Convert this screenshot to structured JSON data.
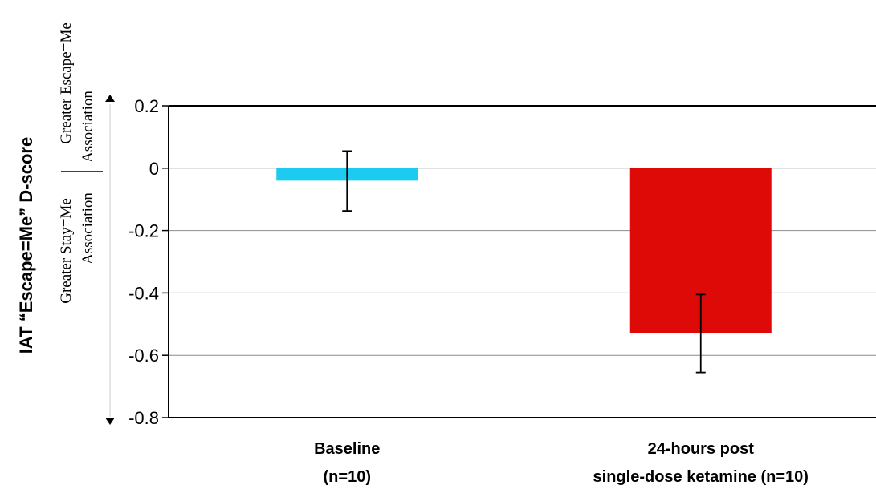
{
  "chart_data": {
    "type": "bar",
    "ylabel": "IAT “Escape=Me” D-score",
    "ylim": [
      -0.8,
      0.2
    ],
    "yticks": [
      "0.2",
      "0",
      "-0.2",
      "-0.4",
      "-0.6",
      "-0.8"
    ],
    "ytick_values": [
      0.2,
      0,
      -0.2,
      -0.4,
      -0.6,
      -0.8
    ],
    "grid": true,
    "categories": [
      {
        "line1": "Baseline",
        "line2": "(n=10)"
      },
      {
        "line1": "24-hours post",
        "line2": "single-dose ketamine (n=10)"
      }
    ],
    "values": [
      -0.04,
      -0.53
    ],
    "errors": [
      {
        "upper": 0.055,
        "lower": -0.137
      },
      {
        "upper": -0.405,
        "lower": -0.655
      }
    ],
    "colors": [
      "#1ecbf0",
      "#dd0a07"
    ],
    "annotations": {
      "upper": {
        "line1": "Greater Escape=Me",
        "line2": "Association"
      },
      "lower": {
        "line1": "Greater Stay=Me",
        "line2": "Association"
      }
    }
  }
}
